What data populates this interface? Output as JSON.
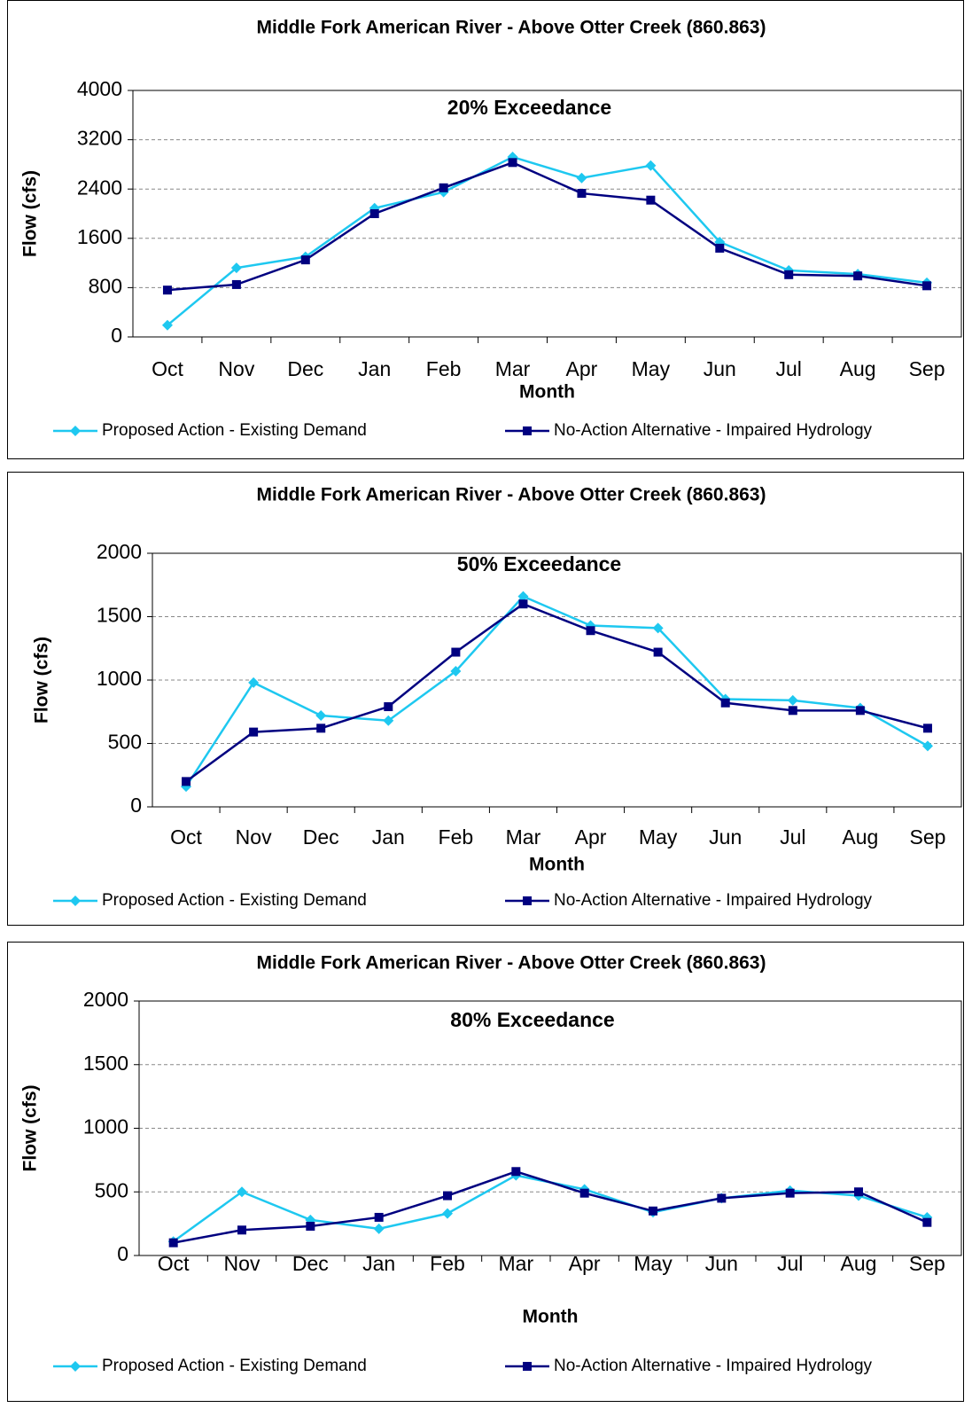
{
  "chart_data": [
    {
      "type": "line",
      "title": "Middle Fork American River - Above Otter Creek (860.863)",
      "subtitle": "20% Exceedance",
      "x_label": "Month",
      "y_label": "Flow (cfs)",
      "categories": [
        "Oct",
        "Nov",
        "Dec",
        "Jan",
        "Feb",
        "Mar",
        "Apr",
        "May",
        "Jun",
        "Jul",
        "Aug",
        "Sep"
      ],
      "series": [
        {
          "name": "Proposed Action - Existing Demand",
          "color": "#1ec8f0",
          "marker": "diamond",
          "values": [
            190,
            1120,
            1300,
            2090,
            2350,
            2920,
            2580,
            2780,
            1540,
            1080,
            1020,
            880
          ]
        },
        {
          "name": "No-Action Alternative - Impaired Hydrology",
          "color": "#000080",
          "marker": "square",
          "values": [
            760,
            850,
            1250,
            2000,
            2420,
            2830,
            2330,
            2220,
            1440,
            1010,
            990,
            830
          ]
        }
      ],
      "ylim": [
        0,
        4000
      ],
      "yticks": [
        0,
        800,
        1600,
        2400,
        3200,
        4000
      ],
      "grid": true,
      "legend": "bottom"
    },
    {
      "type": "line",
      "title": "Middle Fork American River - Above Otter Creek (860.863)",
      "subtitle": "50% Exceedance",
      "x_label": "Month",
      "y_label": "Flow (cfs)",
      "categories": [
        "Oct",
        "Nov",
        "Dec",
        "Jan",
        "Feb",
        "Mar",
        "Apr",
        "May",
        "Jun",
        "Jul",
        "Aug",
        "Sep"
      ],
      "series": [
        {
          "name": "Proposed Action - Existing Demand",
          "color": "#1ec8f0",
          "marker": "diamond",
          "values": [
            160,
            980,
            720,
            680,
            1070,
            1660,
            1430,
            1410,
            850,
            840,
            780,
            480
          ]
        },
        {
          "name": "No-Action Alternative - Impaired Hydrology",
          "color": "#000080",
          "marker": "square",
          "values": [
            200,
            590,
            620,
            790,
            1220,
            1600,
            1390,
            1220,
            820,
            760,
            760,
            620
          ]
        }
      ],
      "ylim": [
        0,
        2000
      ],
      "yticks": [
        0,
        500,
        1000,
        1500,
        2000
      ],
      "grid": true,
      "legend": "bottom"
    },
    {
      "type": "line",
      "title": "Middle Fork American River - Above Otter Creek (860.863)",
      "subtitle": "80% Exceedance",
      "x_label": "Month",
      "y_label": "Flow (cfs)",
      "categories": [
        "Oct",
        "Nov",
        "Dec",
        "Jan",
        "Feb",
        "Mar",
        "Apr",
        "May",
        "Jun",
        "Jul",
        "Aug",
        "Sep"
      ],
      "series": [
        {
          "name": "Proposed Action - Existing Demand",
          "color": "#1ec8f0",
          "marker": "diamond",
          "values": [
            110,
            500,
            280,
            210,
            330,
            630,
            520,
            340,
            450,
            510,
            470,
            300
          ]
        },
        {
          "name": "No-Action Alternative - Impaired Hydrology",
          "color": "#000080",
          "marker": "square",
          "values": [
            100,
            200,
            230,
            300,
            470,
            660,
            490,
            350,
            450,
            490,
            500,
            260
          ]
        }
      ],
      "ylim": [
        0,
        2000
      ],
      "yticks": [
        0,
        500,
        1000,
        1500,
        2000
      ],
      "grid": true,
      "legend": "bottom"
    }
  ]
}
